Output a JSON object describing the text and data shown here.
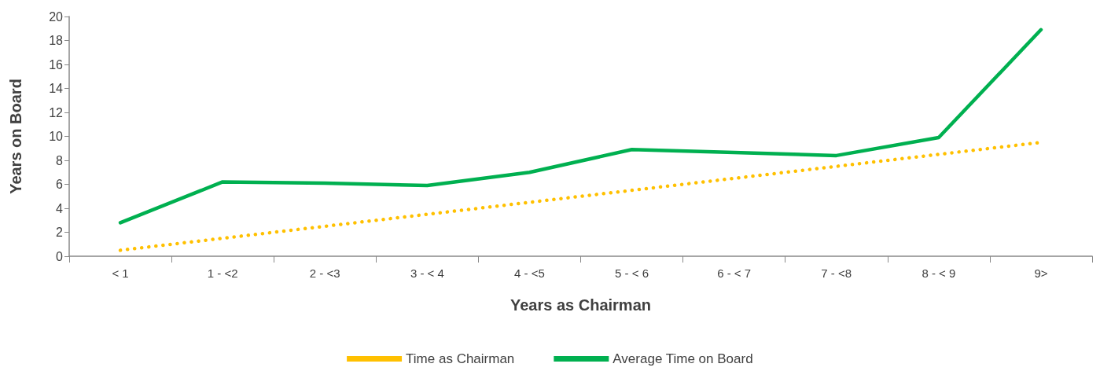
{
  "chart_data": {
    "type": "line",
    "xlabel": "Years as Chairman",
    "ylabel": "Years on Board",
    "categories": [
      "< 1",
      "1 - <2",
      "2 - <3",
      "3 - < 4",
      "4 - <5",
      "5 - < 6",
      "6 - < 7",
      "7 - <8",
      "8 - < 9",
      "9>"
    ],
    "series": [
      {
        "name": "Time as Chairman",
        "color": "#ffc000",
        "line_style": "dotted",
        "values": [
          0.5,
          1.5,
          2.5,
          3.5,
          4.5,
          5.5,
          6.5,
          7.5,
          8.5,
          9.5
        ]
      },
      {
        "name": "Average Time on Board",
        "color": "#00b050",
        "line_style": "solid",
        "values": [
          2.8,
          6.2,
          6.1,
          5.9,
          7.0,
          8.9,
          8.65,
          8.4,
          9.9,
          18.9
        ]
      }
    ],
    "ylim": [
      0,
      20
    ],
    "yticks": [
      0,
      2,
      4,
      6,
      8,
      10,
      12,
      14,
      16,
      18,
      20
    ],
    "grid": false,
    "legend": "bottom",
    "marker": "none"
  }
}
